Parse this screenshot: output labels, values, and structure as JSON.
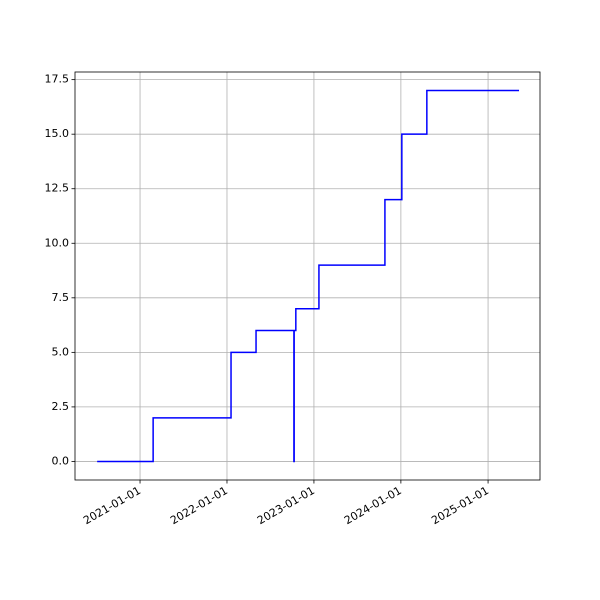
{
  "chart_data": {
    "type": "step",
    "step": "post",
    "x": [
      "2020-07-05",
      "2021-02-25",
      "2022-01-18",
      "2022-05-03",
      "2022-10-09",
      "2022-10-10",
      "2022-10-17",
      "2023-01-22",
      "2023-10-26",
      "2024-01-05",
      "2024-04-19",
      "2025-05-11"
    ],
    "series": [
      {
        "color": "#0000ff",
        "values": [
          0,
          2,
          5,
          6,
          0,
          6,
          7,
          9,
          12,
          15,
          17,
          17
        ]
      }
    ],
    "xlim": [
      "2020-04-03",
      "2025-08-07"
    ],
    "xticks": [
      "2021-01-01",
      "2022-01-01",
      "2023-01-01",
      "2024-01-01",
      "2025-01-01"
    ],
    "ylim": [
      -0.85,
      17.85
    ],
    "yticks": [
      {
        "value": 0,
        "label": "0.0"
      },
      2.5,
      {
        "value": 5,
        "label": "5.0"
      },
      7.5,
      {
        "value": 10,
        "label": "10.0"
      },
      12.5,
      {
        "value": 15,
        "label": "15.0"
      },
      17.5
    ],
    "grid": true
  }
}
